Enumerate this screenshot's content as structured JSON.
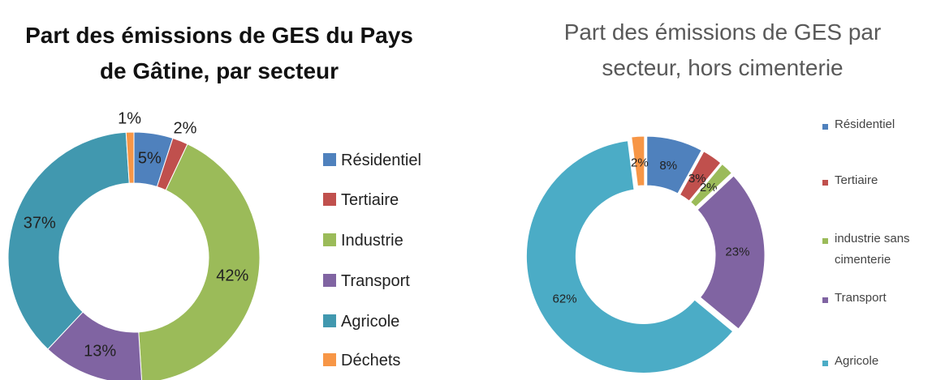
{
  "chart_data": [
    {
      "type": "donut",
      "title": "Part des émissions de GES du Pays de Gâtine, par secteur",
      "categories": [
        "Résidentiel",
        "Tertiaire",
        "Industrie",
        "Transport",
        "Agricole",
        "Déchets"
      ],
      "values": [
        5,
        2,
        42,
        13,
        37,
        1
      ],
      "value_labels": [
        "5%",
        "2%",
        "42%",
        "13%",
        "37%",
        "1%"
      ],
      "colors": [
        "#4f81bd",
        "#c0504d",
        "#9bbb59",
        "#8064a2",
        "#4198af",
        "#f79646"
      ]
    },
    {
      "type": "donut",
      "title": "Part des émissions de GES par secteur, hors cimenterie",
      "categories": [
        "Résidentiel",
        "Tertiaire",
        "industrie sans cimenterie",
        "Transport",
        "Agricole",
        null
      ],
      "values": [
        8,
        3,
        2,
        23,
        62,
        2
      ],
      "value_labels": [
        "8%",
        "3%",
        "2%",
        "23%",
        "62%",
        "2%"
      ],
      "colors": [
        "#4f81bd",
        "#c0504d",
        "#9bbb59",
        "#8064a2",
        "#4bacc6",
        "#f79646"
      ]
    }
  ]
}
